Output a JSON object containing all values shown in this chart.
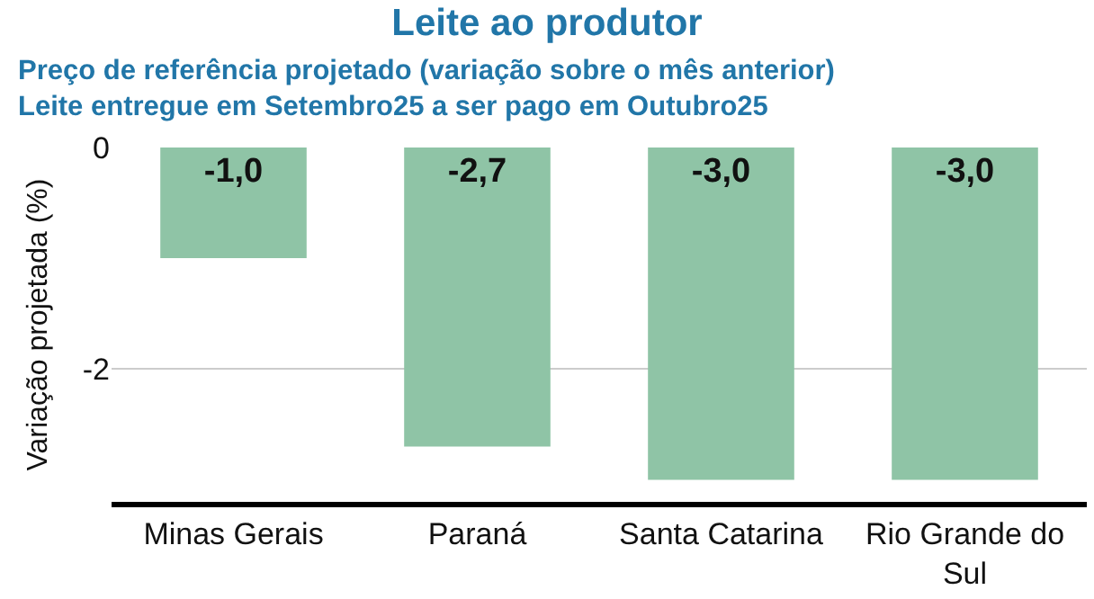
{
  "chart_data": {
    "type": "bar",
    "title": "Leite ao produtor",
    "subtitle": "Preço de referência projetado (variação sobre o mês anterior)\nLeite entregue em Setembro25 a ser pago em Outubro25",
    "ylabel": "Variação projetada (%)",
    "categories": [
      "Minas Gerais",
      "Paraná",
      "Santa Catarina",
      "Rio Grande do Sul"
    ],
    "values": [
      -1.0,
      -2.7,
      -3.0,
      -3.0
    ],
    "value_labels": [
      "-1,0",
      "-2,7",
      "-3,0",
      "-3,0"
    ],
    "color": "#8fc4a6",
    "ylim": [
      -3.2,
      0
    ],
    "yticks": [
      0,
      -2
    ],
    "grid": "y",
    "legend": false
  }
}
